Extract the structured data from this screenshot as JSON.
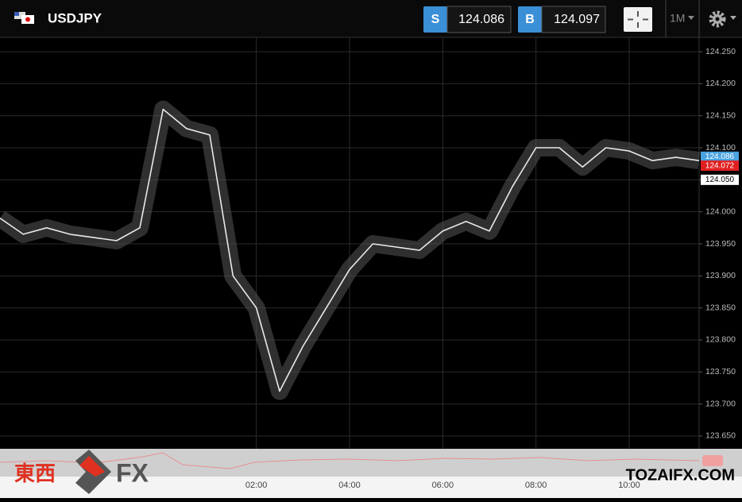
{
  "header": {
    "symbol": "USDJPY",
    "sell": {
      "label": "S",
      "price": "124.086"
    },
    "buy": {
      "label": "B",
      "price": "124.097"
    },
    "timeframe": "1M"
  },
  "chart_data": {
    "type": "line",
    "x": [
      "20:30",
      "21:00",
      "21:30",
      "22:00",
      "22:30",
      "23:00",
      "23:30",
      "00:00",
      "00:30",
      "01:00",
      "01:30",
      "02:00",
      "02:30",
      "03:00",
      "03:30",
      "04:00",
      "04:30",
      "05:00",
      "05:30",
      "06:00",
      "06:30",
      "07:00",
      "07:30",
      "08:00",
      "08:30",
      "09:00",
      "09:30",
      "10:00",
      "10:30",
      "11:00",
      "11:30"
    ],
    "values": [
      123.99,
      123.965,
      123.975,
      123.965,
      123.96,
      123.955,
      123.975,
      124.16,
      124.13,
      124.12,
      123.9,
      123.85,
      123.72,
      123.79,
      123.85,
      123.91,
      123.95,
      123.945,
      123.94,
      123.97,
      123.985,
      123.97,
      124.04,
      124.1,
      124.1,
      124.07,
      124.1,
      124.095,
      124.08,
      124.085,
      124.08
    ],
    "color": "#e8e8e8",
    "xlim": [
      "20:30",
      "11:30"
    ],
    "xticks": [
      "02:00",
      "04:00",
      "06:00",
      "08:00",
      "10:00"
    ],
    "ylim": [
      123.64,
      124.26
    ],
    "yticks": [
      {
        "value": 123.65,
        "label": "123.650"
      },
      {
        "value": 123.7,
        "label": "123.700"
      },
      {
        "value": 123.75,
        "label": "123.750"
      },
      {
        "value": 123.8,
        "label": "123.800"
      },
      {
        "value": 123.85,
        "label": "123.850"
      },
      {
        "value": 123.9,
        "label": "123.900"
      },
      {
        "value": 123.95,
        "label": "123.950"
      },
      {
        "value": 124,
        "label": "124.000"
      },
      {
        "value": 124.05,
        "label": "124.050"
      },
      {
        "value": 124.1,
        "label": "124.100"
      },
      {
        "value": 124.15,
        "label": "124.150"
      },
      {
        "value": 124.2,
        "label": "124.200"
      },
      {
        "value": 124.25,
        "label": "124.250"
      }
    ],
    "grid": true,
    "price_labels": [
      {
        "value": 124.086,
        "label": "124.086",
        "color": "#4aa3df"
      },
      {
        "value": 124.072,
        "label": "124.072",
        "color": "#e02020"
      },
      {
        "value": 124.05,
        "label": "124.050",
        "color": "#ffffff"
      }
    ]
  },
  "watermark": {
    "kanji": "東西",
    "fx": "FX",
    "site": "TOZAIFX.COM"
  }
}
